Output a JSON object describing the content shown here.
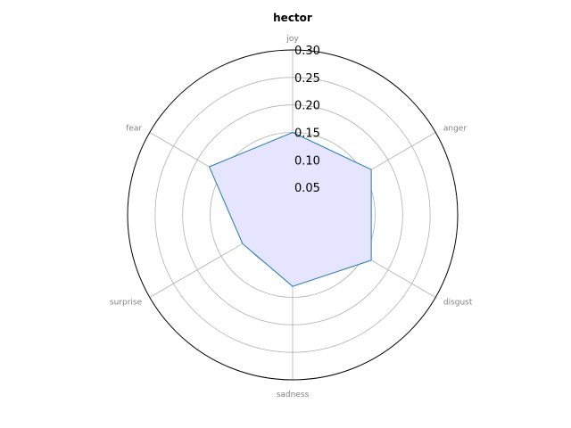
{
  "chart_data": {
    "type": "radar",
    "title": "hector",
    "axes": [
      "joy",
      "anger",
      "disgust",
      "sadness",
      "surprise",
      "fear"
    ],
    "series": [
      {
        "values": [
          0.15,
          0.165,
          0.165,
          0.13,
          0.105,
          0.175
        ]
      }
    ],
    "rlim": [
      0,
      0.3
    ],
    "rticks": [
      "0.05",
      "0.10",
      "0.15",
      "0.20",
      "0.25",
      "0.30"
    ],
    "grid": true,
    "colors": {
      "line": "#1f77b4",
      "fill": "#e5e5ff",
      "grid": "#b0b0b0",
      "frame": "#000000",
      "axis_text": "#808080"
    }
  }
}
